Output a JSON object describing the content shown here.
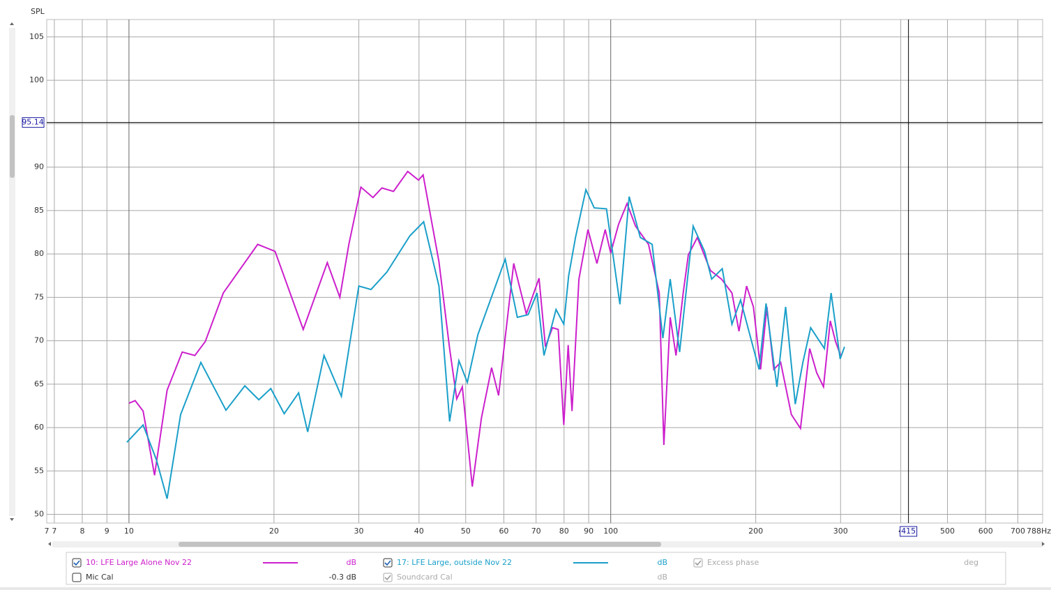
{
  "chart_data": {
    "type": "line",
    "y_label": "SPL",
    "log_x": true,
    "grid": true,
    "xlim": [
      6.75,
      788
    ],
    "ylim": [
      49,
      107
    ],
    "x_edge_labels": [
      "7",
      "788Hz"
    ],
    "xticks": [
      7,
      8,
      9,
      10,
      20,
      30,
      40,
      50,
      60,
      70,
      80,
      90,
      100,
      200,
      300,
      {
        "value": 400,
        "label": "4"
      },
      500,
      600,
      700
    ],
    "yticks": [
      50,
      55,
      60,
      65,
      70,
      75,
      80,
      85,
      90,
      95,
      100,
      105
    ],
    "cursor": {
      "x": 415,
      "y": 95.14
    },
    "series": [
      {
        "name": "10: LFE Large Alone Nov 22",
        "color": "#cc1fcc",
        "unit": "dB",
        "checked": true,
        "x": [
          10,
          10.3,
          10.7,
          11.3,
          12.0,
          12.9,
          13.7,
          14.4,
          15.7,
          18.5,
          20.1,
          23,
          25.8,
          27.4,
          28.6,
          30.3,
          32.1,
          33.5,
          35.4,
          37.9,
          39.9,
          40.8,
          44,
          46.3,
          47.9,
          49.2,
          51.6,
          53.9,
          56.6,
          58.5,
          62.9,
          66.8,
          71,
          73.2,
          75.7,
          77.8,
          79.9,
          81.6,
          83.1,
          85.9,
          89.7,
          93.6,
          97.4,
          100,
          103.8,
          108.1,
          112.6,
          119.8,
          126.1,
          128.9,
          132.9,
          136.6,
          141.4,
          144.9,
          151.3,
          161,
          169.8,
          178.5,
          184.6,
          191.4,
          197.8,
          204.7,
          210.9,
          218,
          225.3,
          237.1,
          247.7,
          258.8,
          267.7,
          276.5,
          285.6,
          292.9,
          300
        ],
        "values": [
          62.8,
          63.1,
          61.9,
          54.5,
          64.3,
          68.7,
          68.3,
          69.9,
          75.5,
          81.1,
          80.3,
          71.3,
          79,
          75,
          81.1,
          87.7,
          86.5,
          87.6,
          87.2,
          89.5,
          88.5,
          89.1,
          79.1,
          69.1,
          63.3,
          64.7,
          53.2,
          61.1,
          66.9,
          63.7,
          78.9,
          73.1,
          77.2,
          69.3,
          71.5,
          71.3,
          60.3,
          69.5,
          61.9,
          77.1,
          82.8,
          78.9,
          82.8,
          80.1,
          83.4,
          85.8,
          83.2,
          81.1,
          75.5,
          58,
          72.7,
          68.3,
          75.5,
          79.9,
          81.9,
          78.1,
          77.1,
          75.5,
          71.1,
          76.3,
          73.9,
          66.7,
          73.9,
          66.7,
          67.5,
          61.5,
          59.9,
          69.1,
          66.3,
          64.7,
          72.3,
          69.9,
          68.3
        ]
      },
      {
        "name": "17: LFE Large, outside Nov 22",
        "color": "#1a9fc9",
        "unit": "dB",
        "checked": true,
        "x": [
          9.9,
          10.7,
          11.4,
          12.0,
          12.8,
          14.1,
          15.9,
          17.4,
          18.6,
          19.7,
          21.0,
          22.5,
          23.5,
          25.4,
          27.6,
          30,
          31.8,
          34.3,
          38.3,
          40.9,
          44,
          46.3,
          48.4,
          50.4,
          53.0,
          60.4,
          64.0,
          67.4,
          70.3,
          72.7,
          77.0,
          79.9,
          81.8,
          84.5,
          88.8,
          92.4,
          98.0,
          104.5,
          109.2,
          115.2,
          121.9,
          128.3,
          132.9,
          139,
          148.3,
          156.6,
          162,
          170.4,
          178.5,
          186.0,
          203.2,
          210.1,
          221.3,
          230.7,
          241.6,
          250.5,
          260,
          277.7,
          286.7,
          299.4,
          305.7
        ],
        "values": [
          58.3,
          60.3,
          56.3,
          51.8,
          61.5,
          67.5,
          62.0,
          64.8,
          63.2,
          64.5,
          61.6,
          64.0,
          59.5,
          68.3,
          63.6,
          76.3,
          75.9,
          77.9,
          82.1,
          83.7,
          76.3,
          60.7,
          67.7,
          65.2,
          70.7,
          79.4,
          72.7,
          73.0,
          75.5,
          68.3,
          73.6,
          71.9,
          77.5,
          81.9,
          87.4,
          85.3,
          85.2,
          74.2,
          86.6,
          81.9,
          81.1,
          70.3,
          77.1,
          68.7,
          83.2,
          80.3,
          77.1,
          78.3,
          71.9,
          74.7,
          66.7,
          74.3,
          64.7,
          73.9,
          62.7,
          67.5,
          71.5,
          69.1,
          75.5,
          67.9,
          69.3
        ]
      }
    ],
    "legend_extras": [
      {
        "name": "Excess phase",
        "unit": "deg",
        "checked": true,
        "enabled": false
      },
      {
        "name": "Mic Cal",
        "unit": "-0.3 dB",
        "checked": false,
        "enabled": true
      },
      {
        "name": "Soundcard Cal",
        "unit": "dB",
        "checked": true,
        "enabled": false
      }
    ]
  }
}
